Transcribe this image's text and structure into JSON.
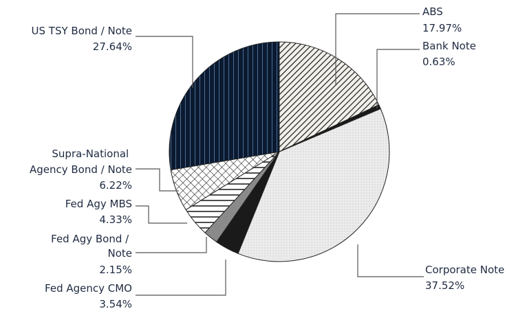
{
  "chart_data": {
    "type": "pie",
    "title": "",
    "unit": "%",
    "slices": [
      {
        "name": "ABS",
        "value": 17.97,
        "label": "17.97%",
        "pattern": "diag-hatch-right"
      },
      {
        "name": "Bank Note",
        "value": 0.63,
        "label": "0.63%",
        "pattern": "solid-black"
      },
      {
        "name": "Corporate Note",
        "value": 37.52,
        "label": "37.52%",
        "pattern": "light-dots"
      },
      {
        "name": "Fed Agency CMO",
        "value": 3.54,
        "label": "3.54%",
        "pattern": "solid-black"
      },
      {
        "name": "Fed Agy Bond / Note",
        "value": 2.15,
        "label": "2.15%",
        "pattern": "solid-gray"
      },
      {
        "name": "Fed Agy MBS",
        "value": 4.33,
        "label": "4.33%",
        "pattern": "horizontal-lines"
      },
      {
        "name": "Supra-National Agency Bond / Note",
        "value": 6.22,
        "label": "6.22%",
        "pattern": "crosshatch"
      },
      {
        "name": "US TSY Bond / Note",
        "value": 27.64,
        "label": "27.64%",
        "pattern": "dark-navy-vertical-stripes"
      }
    ],
    "start_angle_deg": 0,
    "direction": "clockwise"
  }
}
